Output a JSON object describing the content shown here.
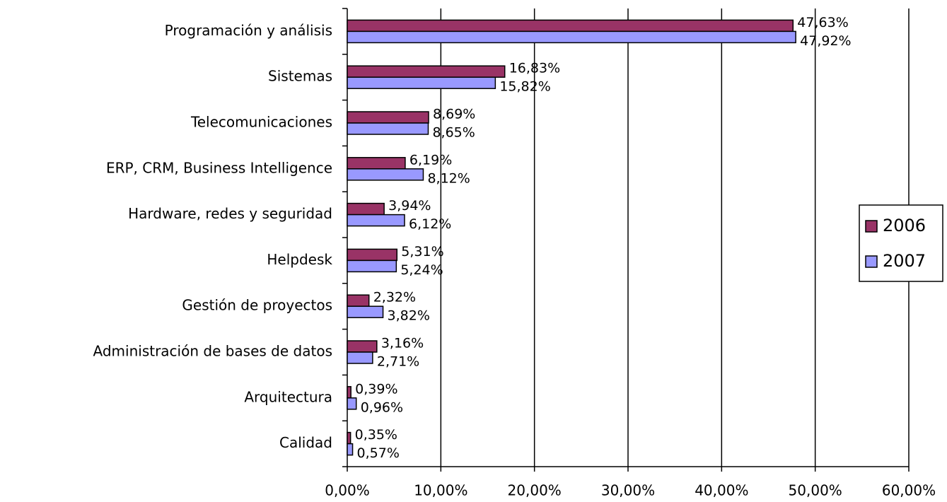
{
  "chart_data": {
    "type": "barh",
    "categories": [
      "Programación y análisis",
      "Sistemas",
      "Telecomunicaciones",
      "ERP, CRM, Business Intelligence",
      "Hardware, redes y seguridad",
      "Helpdesk",
      "Gestión de proyectos",
      "Administración de bases de datos",
      "Arquitectura",
      "Calidad"
    ],
    "series": [
      {
        "name": "2006",
        "color": "#993366",
        "values": [
          47.63,
          16.83,
          8.69,
          6.19,
          3.94,
          5.31,
          2.32,
          3.16,
          0.39,
          0.35
        ],
        "value_labels": [
          "47,63%",
          "16,83%",
          "8,69%",
          "6,19%",
          "3,94%",
          "5,31%",
          "2,32%",
          "3,16%",
          "0,39%",
          "0,35%"
        ]
      },
      {
        "name": "2007",
        "color": "#9999ff",
        "values": [
          47.92,
          15.82,
          8.65,
          8.12,
          6.12,
          5.24,
          3.82,
          2.71,
          0.96,
          0.57
        ],
        "value_labels": [
          "47,92%",
          "15,82%",
          "8,65%",
          "8,12%",
          "6,12%",
          "5,24%",
          "3,82%",
          "2,71%",
          "0,96%",
          "0,57%"
        ]
      }
    ],
    "xlim": [
      0,
      60
    ],
    "xticks": [
      {
        "value": 0,
        "label": "0,00%"
      },
      {
        "value": 10,
        "label": "10,00%"
      },
      {
        "value": 20,
        "label": "20,00%"
      },
      {
        "value": 30,
        "label": "30,00%"
      },
      {
        "value": 40,
        "label": "40,00%"
      },
      {
        "value": 50,
        "label": "50,00%"
      },
      {
        "value": 60,
        "label": "60,00%"
      }
    ],
    "grid": true,
    "legend": "right"
  }
}
